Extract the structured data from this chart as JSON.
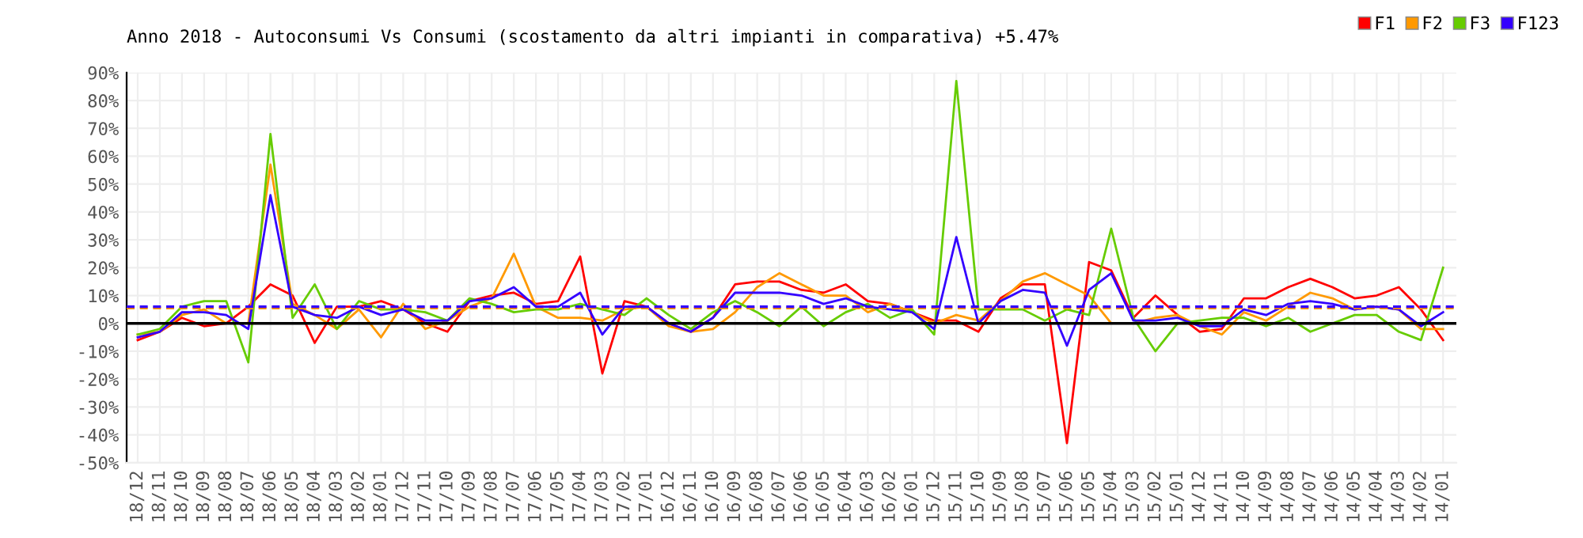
{
  "chart_data": {
    "type": "line",
    "title": "Anno 2018 - Autoconsumi Vs Consumi (scostamento da altri impianti in comparativa) +5.47%",
    "categories": [
      "18/12",
      "18/11",
      "18/10",
      "18/09",
      "18/08",
      "18/07",
      "18/06",
      "18/05",
      "18/04",
      "18/03",
      "18/02",
      "18/01",
      "17/12",
      "17/11",
      "17/10",
      "17/09",
      "17/08",
      "17/07",
      "17/06",
      "17/05",
      "17/04",
      "17/03",
      "17/02",
      "17/01",
      "16/12",
      "16/11",
      "16/10",
      "16/09",
      "16/08",
      "16/07",
      "16/06",
      "16/05",
      "16/04",
      "16/03",
      "16/02",
      "16/01",
      "15/12",
      "15/11",
      "15/10",
      "15/09",
      "15/08",
      "15/07",
      "15/06",
      "15/05",
      "15/04",
      "15/03",
      "15/02",
      "15/01",
      "14/12",
      "14/11",
      "14/10",
      "14/09",
      "14/08",
      "14/07",
      "14/06",
      "14/05",
      "14/04",
      "14/03",
      "14/02",
      "14/01"
    ],
    "series": [
      {
        "name": "F1",
        "color": "#ff0000",
        "values": [
          -6,
          -3,
          2,
          -1,
          0,
          6,
          14,
          10,
          -7,
          6,
          6,
          8,
          5,
          0,
          -3,
          8,
          10,
          11,
          7,
          8,
          24,
          -18,
          8,
          6,
          0,
          -3,
          2,
          14,
          15,
          15,
          12,
          11,
          14,
          8,
          7,
          4,
          1,
          1,
          -3,
          9,
          14,
          14,
          -43,
          22,
          19,
          2,
          10,
          3,
          -3,
          -2,
          9,
          9,
          13,
          16,
          13,
          9,
          10,
          13,
          5,
          -6
        ]
      },
      {
        "name": "F2",
        "color": "#ff9900",
        "values": [
          -4,
          -3,
          3,
          5,
          0,
          0,
          57,
          7,
          3,
          -2,
          5,
          -5,
          7,
          -2,
          1,
          6,
          9,
          25,
          6,
          2,
          2,
          1,
          5,
          6,
          -1,
          -3,
          -2,
          4,
          13,
          18,
          14,
          10,
          10,
          4,
          7,
          4,
          0,
          3,
          1,
          8,
          15,
          18,
          14,
          10,
          0,
          0,
          2,
          3,
          -1,
          -4,
          4,
          1,
          6,
          11,
          9,
          5,
          6,
          5,
          -2,
          -2
        ]
      },
      {
        "name": "F3",
        "color": "#66cc00",
        "values": [
          -4,
          -2,
          6,
          8,
          8,
          -14,
          68,
          2,
          14,
          -2,
          8,
          5,
          5,
          4,
          1,
          9,
          7,
          4,
          5,
          5,
          7,
          5,
          3,
          9,
          3,
          -2,
          4,
          8,
          4,
          -1,
          6,
          -1,
          4,
          7,
          2,
          5,
          -4,
          87,
          5,
          5,
          5,
          1,
          5,
          3,
          34,
          2,
          -10,
          0,
          1,
          2,
          2,
          -1,
          2,
          -3,
          0,
          3,
          3,
          -3,
          -6,
          20
        ]
      },
      {
        "name": "F123",
        "color": "#3300ff",
        "values": [
          -5,
          -3,
          4,
          4,
          3,
          -2,
          46,
          6,
          3,
          2,
          6,
          3,
          5,
          1,
          1,
          8,
          9,
          13,
          6,
          6,
          11,
          -4,
          6,
          6,
          0,
          -3,
          2,
          11,
          11,
          11,
          10,
          7,
          9,
          6,
          5,
          4,
          -2,
          31,
          0,
          8,
          12,
          11,
          -8,
          12,
          18,
          1,
          1,
          2,
          -1,
          -1,
          5,
          3,
          7,
          8,
          7,
          5,
          6,
          5,
          -1,
          4
        ]
      }
    ],
    "ylim": [
      -50,
      90
    ],
    "yticks": [
      {
        "value": -50,
        "label": "-50%"
      },
      {
        "value": -40,
        "label": "-40%"
      },
      {
        "value": -30,
        "label": "-30%"
      },
      {
        "value": -20,
        "label": "-20%"
      },
      {
        "value": -10,
        "label": "-10%"
      },
      {
        "value": 0,
        "label": "0%"
      },
      {
        "value": 10,
        "label": "10%"
      },
      {
        "value": 20,
        "label": "20%"
      },
      {
        "value": 30,
        "label": "30%"
      },
      {
        "value": 40,
        "label": "40%"
      },
      {
        "value": 50,
        "label": "50%"
      },
      {
        "value": 60,
        "label": "60%"
      },
      {
        "value": 70,
        "label": "70%"
      },
      {
        "value": 80,
        "label": "80%"
      },
      {
        "value": 90,
        "label": "90%"
      }
    ],
    "ref_lines": [
      {
        "axis": "y",
        "value": 0,
        "color": "#000000",
        "line_style": "solid"
      },
      {
        "axis": "y",
        "value": 5.5,
        "color": "#ff9900",
        "line_style": "dashed"
      },
      {
        "axis": "y",
        "value": 6,
        "color": "#3300ff",
        "line_style": "dashed"
      }
    ],
    "grid": true,
    "legend": "top right",
    "marker": "none",
    "line_style": "solid"
  }
}
